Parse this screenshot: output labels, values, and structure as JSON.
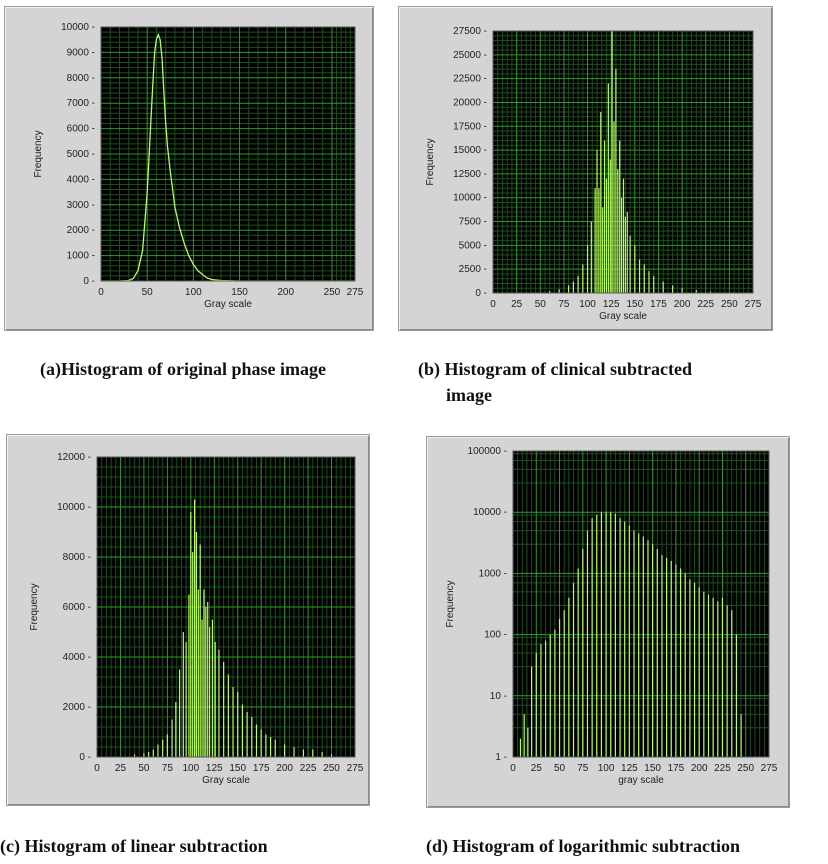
{
  "captions": {
    "a": "(a)Histogram of original  phase image",
    "b_line1": "(b) Histogram of clinical subtracted",
    "b_line2": "image",
    "c": "(c) Histogram of linear subtraction",
    "d": "(d) Histogram of logarithmic subtraction"
  },
  "colors": {
    "plot_bg": "#000000",
    "grid_major": "#2f9a2f",
    "grid_minor": "#1d4f1d",
    "trace": "#b8ff5a",
    "panel_bg": "#d4d4d4"
  },
  "chart_data": [
    {
      "id": "a",
      "type": "line",
      "xlabel": "Gray scale",
      "ylabel": "Frequency",
      "xlim": [
        0,
        275
      ],
      "ylim": [
        0,
        10000
      ],
      "xticks": [
        "0",
        "50",
        "100",
        "150",
        "200",
        "250",
        "275"
      ],
      "xtick_values": [
        0,
        50,
        100,
        150,
        200,
        250,
        275
      ],
      "yticks": [
        "0",
        "1000",
        "2000",
        "3000",
        "4000",
        "5000",
        "6000",
        "7000",
        "8000",
        "9000",
        "10000"
      ],
      "ytick_values": [
        0,
        1000,
        2000,
        3000,
        4000,
        5000,
        6000,
        7000,
        8000,
        9000,
        10000
      ],
      "grid": true,
      "series": [
        {
          "x": [
            0,
            20,
            30,
            35,
            40,
            45,
            50,
            55,
            58,
            60,
            62,
            64,
            66,
            68,
            70,
            72,
            75,
            78,
            80,
            85,
            90,
            95,
            100,
            105,
            110,
            115,
            120,
            130,
            150,
            200,
            275
          ],
          "y": [
            0,
            0,
            20,
            100,
            400,
            1200,
            3500,
            7000,
            9000,
            9500,
            9700,
            9500,
            8800,
            7500,
            6200,
            5300,
            4300,
            3500,
            2900,
            2100,
            1500,
            1000,
            650,
            400,
            250,
            120,
            60,
            20,
            0,
            0,
            0
          ]
        }
      ]
    },
    {
      "id": "b",
      "type": "bar",
      "xlabel": "Gray scale",
      "ylabel": "Frequency",
      "xlim": [
        0,
        275
      ],
      "ylim": [
        0,
        27500
      ],
      "xticks": [
        "0",
        "25",
        "50",
        "75",
        "100",
        "125",
        "150",
        "175",
        "200",
        "225",
        "250",
        "275"
      ],
      "xtick_values": [
        0,
        25,
        50,
        75,
        100,
        125,
        150,
        175,
        200,
        225,
        250,
        275
      ],
      "yticks": [
        "0",
        "2500",
        "5000",
        "7500",
        "10000",
        "12500",
        "15000",
        "17500",
        "20000",
        "22500",
        "25000",
        "27500"
      ],
      "ytick_values": [
        0,
        2500,
        5000,
        7500,
        10000,
        12500,
        15000,
        17500,
        20000,
        22500,
        25000,
        27500
      ],
      "grid": true,
      "series": [
        {
          "x": [
            60,
            70,
            80,
            85,
            90,
            95,
            100,
            104,
            108,
            110,
            112,
            114,
            116,
            118,
            120,
            122,
            124,
            126,
            128,
            130,
            132,
            134,
            136,
            138,
            140,
            142,
            145,
            150,
            155,
            160,
            165,
            170,
            180,
            190,
            200,
            215,
            230
          ],
          "y": [
            200,
            400,
            800,
            1200,
            1800,
            3000,
            5000,
            7500,
            11000,
            15000,
            11000,
            19000,
            9000,
            16000,
            12000,
            22000,
            14000,
            27500,
            18000,
            23500,
            13000,
            16000,
            10000,
            12000,
            8000,
            8500,
            6000,
            5000,
            3500,
            3000,
            2300,
            1800,
            1200,
            800,
            500,
            300,
            150
          ]
        }
      ]
    },
    {
      "id": "c",
      "type": "bar",
      "xlabel": "Gray scale",
      "ylabel": "Frequency",
      "xlim": [
        0,
        275
      ],
      "ylim": [
        0,
        12000
      ],
      "xticks": [
        "0",
        "25",
        "50",
        "75",
        "100",
        "125",
        "150",
        "175",
        "200",
        "225",
        "250",
        "275"
      ],
      "xtick_values": [
        0,
        25,
        50,
        75,
        100,
        125,
        150,
        175,
        200,
        225,
        250,
        275
      ],
      "yticks": [
        "0",
        "2000",
        "4000",
        "6000",
        "8000",
        "10000",
        "12000"
      ],
      "ytick_values": [
        0,
        2000,
        4000,
        6000,
        8000,
        10000,
        12000
      ],
      "grid": true,
      "series": [
        {
          "x": [
            40,
            50,
            55,
            60,
            65,
            70,
            75,
            80,
            84,
            88,
            92,
            95,
            98,
            100,
            102,
            104,
            106,
            108,
            110,
            112,
            114,
            116,
            118,
            120,
            123,
            126,
            130,
            135,
            140,
            145,
            150,
            155,
            160,
            165,
            170,
            175,
            180,
            185,
            190,
            200,
            210,
            220,
            230,
            240,
            250
          ],
          "y": [
            100,
            150,
            200,
            300,
            500,
            700,
            900,
            1500,
            2200,
            3500,
            5000,
            4600,
            6500,
            9800,
            8200,
            10300,
            9000,
            6700,
            8500,
            5500,
            6700,
            6000,
            6200,
            5200,
            5500,
            4600,
            4300,
            3800,
            3300,
            2800,
            2600,
            2100,
            1800,
            1600,
            1300,
            1100,
            900,
            800,
            700,
            500,
            400,
            300,
            300,
            200,
            100
          ]
        }
      ]
    },
    {
      "id": "d",
      "type": "bar",
      "xlabel": "gray scale",
      "ylabel": "Frequency",
      "xlim": [
        0,
        275
      ],
      "ylim": [
        1,
        100000
      ],
      "yscale": "log",
      "xticks": [
        "0",
        "25",
        "50",
        "75",
        "100",
        "125",
        "150",
        "175",
        "200",
        "225",
        "250",
        "275"
      ],
      "xtick_values": [
        0,
        25,
        50,
        75,
        100,
        125,
        150,
        175,
        200,
        225,
        250,
        275
      ],
      "yticks": [
        "1",
        "10",
        "100",
        "1000",
        "10000",
        "100000"
      ],
      "ytick_values": [
        1,
        10,
        100,
        1000,
        10000,
        100000
      ],
      "grid": true,
      "series": [
        {
          "x": [
            8,
            12,
            16,
            20,
            25,
            30,
            35,
            40,
            45,
            50,
            55,
            60,
            65,
            70,
            75,
            80,
            85,
            90,
            95,
            100,
            105,
            110,
            115,
            120,
            125,
            130,
            135,
            140,
            145,
            150,
            155,
            160,
            165,
            170,
            175,
            180,
            185,
            190,
            195,
            200,
            205,
            210,
            215,
            220,
            225,
            230,
            235,
            240,
            245
          ],
          "y": [
            2,
            5,
            3,
            30,
            50,
            70,
            80,
            100,
            120,
            180,
            250,
            400,
            700,
            1200,
            2500,
            5000,
            8000,
            9000,
            10000,
            10000,
            10000,
            9500,
            8000,
            7000,
            6000,
            5000,
            4500,
            4000,
            3500,
            3000,
            2500,
            2000,
            1800,
            1600,
            1400,
            1200,
            1000,
            800,
            700,
            600,
            500,
            450,
            400,
            350,
            400,
            300,
            250,
            100,
            5
          ]
        }
      ]
    }
  ]
}
